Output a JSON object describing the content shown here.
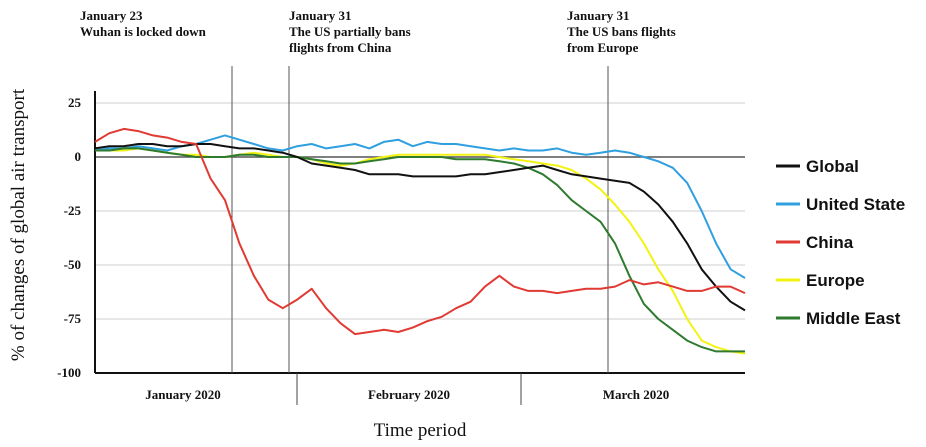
{
  "chart_data": {
    "type": "line",
    "xlabel": "Time period",
    "ylabel": "% of changes of global air transport",
    "ylim": [
      -100,
      25
    ],
    "yticks": [
      25,
      0,
      -25,
      -50,
      -75,
      -100
    ],
    "grid": "horizontal",
    "legend_position": "right",
    "months": [
      "January 2020",
      "February 2020",
      "March 2020"
    ],
    "annotations": [
      {
        "id": "wuhan",
        "lines": [
          "January 23",
          "Wuhan is locked down"
        ]
      },
      {
        "id": "us-china",
        "lines": [
          "January 31",
          "The US partially bans",
          "flights from China"
        ]
      },
      {
        "id": "us-europe",
        "lines": [
          "January 31",
          "The US bans flights",
          "from Europe"
        ]
      }
    ],
    "x": [
      0,
      2,
      4,
      6,
      8,
      10,
      12,
      14,
      16,
      18,
      20,
      22,
      24,
      26,
      28,
      30,
      32,
      34,
      36,
      38,
      40,
      42,
      44,
      46,
      48,
      50,
      52,
      54,
      56,
      58,
      60,
      62,
      64,
      66,
      68,
      70,
      72,
      74,
      76,
      78,
      80,
      82,
      84,
      86,
      88,
      90
    ],
    "series": [
      {
        "name": "Global",
        "color": "#111111",
        "values": [
          4,
          5,
          5,
          6,
          6,
          5,
          5,
          6,
          6,
          5,
          4,
          4,
          3,
          2,
          0,
          -3,
          -4,
          -5,
          -6,
          -8,
          -8,
          -8,
          -9,
          -9,
          -9,
          -9,
          -8,
          -8,
          -7,
          -6,
          -5,
          -4,
          -6,
          -8,
          -9,
          -10,
          -11,
          -12,
          -16,
          -22,
          -30,
          -40,
          -52,
          -60,
          -67,
          -71
        ]
      },
      {
        "name": "United State",
        "color": "#2f9fe0",
        "values": [
          3,
          4,
          4,
          5,
          4,
          3,
          5,
          6,
          8,
          10,
          8,
          6,
          4,
          3,
          5,
          6,
          4,
          5,
          6,
          4,
          7,
          8,
          5,
          7,
          6,
          6,
          5,
          4,
          3,
          4,
          3,
          3,
          4,
          2,
          1,
          2,
          3,
          2,
          0,
          -2,
          -5,
          -12,
          -25,
          -40,
          -52,
          -56
        ]
      },
      {
        "name": "China",
        "color": "#e03a32",
        "values": [
          7,
          11,
          13,
          12,
          10,
          9,
          7,
          6,
          -10,
          -20,
          -40,
          -55,
          -66,
          -70,
          -66,
          -61,
          -70,
          -77,
          -82,
          -81,
          -80,
          -81,
          -79,
          -76,
          -74,
          -70,
          -67,
          -60,
          -55,
          -60,
          -62,
          -62,
          -63,
          -62,
          -61,
          -61,
          -60,
          -57,
          -59,
          -58,
          -60,
          -62,
          -62,
          -60,
          -60,
          -63
        ]
      },
      {
        "name": "Europe",
        "color": "#f3f313",
        "values": [
          3,
          3,
          3,
          4,
          3,
          2,
          1,
          1,
          0,
          0,
          1,
          2,
          1,
          0,
          0,
          -1,
          -3,
          -4,
          -3,
          -1,
          0,
          1,
          1,
          1,
          1,
          1,
          1,
          1,
          0,
          -1,
          -2,
          -3,
          -4,
          -6,
          -10,
          -15,
          -22,
          -30,
          -40,
          -52,
          -62,
          -75,
          -85,
          -88,
          -90,
          -91
        ]
      },
      {
        "name": "Middle East",
        "color": "#2e7a2e",
        "values": [
          3,
          3,
          4,
          4,
          3,
          2,
          1,
          0,
          0,
          0,
          1,
          1,
          0,
          0,
          0,
          -1,
          -2,
          -3,
          -3,
          -2,
          -1,
          0,
          0,
          0,
          0,
          -1,
          -1,
          -1,
          -2,
          -3,
          -5,
          -8,
          -13,
          -20,
          -25,
          -30,
          -40,
          -55,
          -68,
          -75,
          -80,
          -85,
          -88,
          -90,
          -90,
          -90
        ]
      }
    ]
  }
}
